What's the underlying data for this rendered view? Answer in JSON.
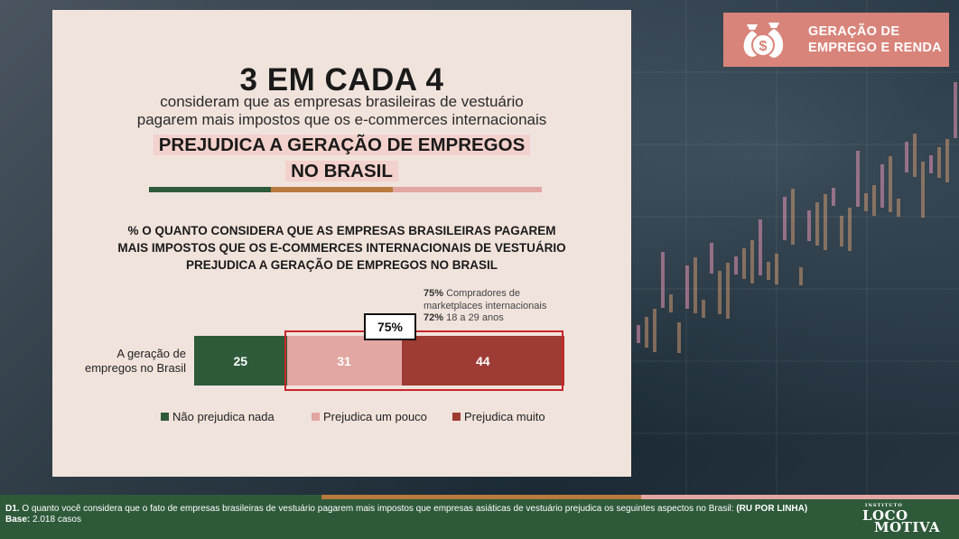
{
  "badge": {
    "line1": "GERAÇÃO DE",
    "line2": "EMPREGO E RENDA",
    "icon": "money-bag-icon"
  },
  "headline": "3 EM CADA 4",
  "subtitle_line1": "consideram que as empresas brasileiras de vestuário",
  "subtitle_line2": "pagarem mais impostos que os e-commerces internacionais",
  "highlight_line1": "PREJUDICA A GERAÇÃO DE EMPREGOS",
  "highlight_line2": "NO BRASIL",
  "question_line1": "% O QUANTO CONSIDERA QUE AS EMPRESAS BRASILEIRAS PAGAREM",
  "question_line2": "MAIS IMPOSTOS QUE OS E-COMMERCES INTERNACIONAIS DE VESTUÁRIO",
  "question_line3": "PREJUDICA A GERAÇÃO DE EMPREGOS NO BRASIL",
  "note": {
    "line1_pct": "75%",
    "line1_text": "Compradores de",
    "line2_text": "marketplaces internacionais",
    "line3_pct": "72%",
    "line3_text": "18 a 29 anos"
  },
  "callout": "75%",
  "colors": {
    "green": "#2e5a3a",
    "pink": "#e2a7a2",
    "red": "#9e3b34",
    "orange": "#b87a3e",
    "badge": "#d9847a"
  },
  "chart_data": {
    "type": "bar",
    "orientation": "horizontal-stacked",
    "categories": [
      "A geração de empregos no Brasil"
    ],
    "category_line1": "A geração de",
    "category_line2": "empregos no Brasil",
    "series": [
      {
        "name": "Não prejudica nada",
        "values": [
          25
        ],
        "color": "#2e5a3a"
      },
      {
        "name": "Prejudica um pouco",
        "values": [
          31
        ],
        "color": "#e2a7a2"
      },
      {
        "name": "Prejudica muito",
        "values": [
          44
        ],
        "color": "#9e3b34"
      }
    ],
    "xlim": [
      0,
      100
    ],
    "legend": "bottom"
  },
  "footer": {
    "q_label": "D1.",
    "q_text": "O quanto você considera que o fato de empresas brasileiras de vestuário pagarem mais impostos que empresas asiáticas de vestuário prejudica os seguintes aspectos no Brasil:",
    "q_bold": "(RU POR LINHA)",
    "base_label": "Base:",
    "base_value": "2.018 casos"
  },
  "logo": {
    "small": "INSTITUTO",
    "line1": "LOCO",
    "line2": "MOTIVA"
  }
}
